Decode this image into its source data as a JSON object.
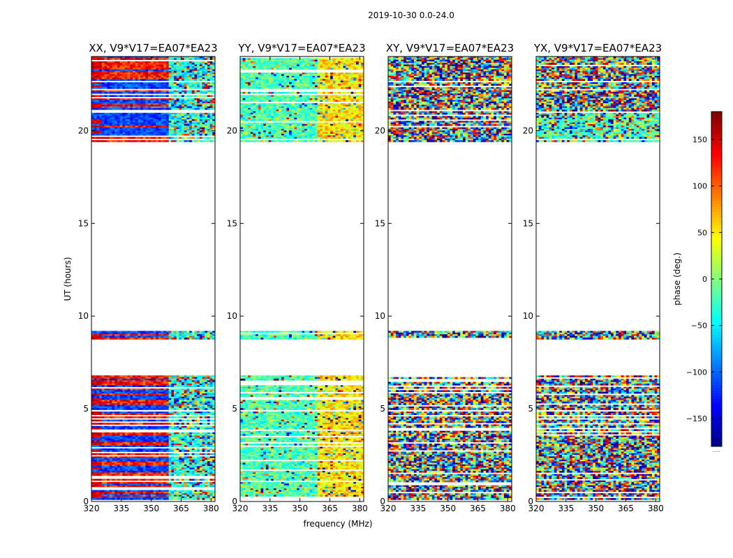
{
  "chart_data": {
    "type": "heatmap",
    "suptitle": "2019-10-30 0.0-24.0",
    "ylabel": "UT (hours)",
    "xlabel": "frequency (MHz)",
    "xlim": [
      320,
      382
    ],
    "ylim": [
      0,
      24
    ],
    "xticks": [
      320,
      335,
      350,
      365,
      380
    ],
    "yticks": [
      0,
      5,
      10,
      15,
      20
    ],
    "colormap": "jet",
    "colorbar": {
      "label": "phase (deg.)",
      "range": [
        -180,
        180
      ],
      "ticks": [
        -150,
        -100,
        -50,
        0,
        50,
        100,
        150
      ],
      "extra_label": "......"
    },
    "data_blocks_ut_hours": [
      [
        0.1,
        4.85
      ],
      [
        4.95,
        6.8
      ],
      [
        8.75,
        9.2
      ],
      [
        19.4,
        24.0
      ]
    ],
    "panels": [
      {
        "title": "XX, V9*V17=EA07*EA23",
        "phase_pattern": "red-blue bands, left half strong, right half noisy"
      },
      {
        "title": "YY, V9*V17=EA07*EA23",
        "phase_pattern": "cyan-green left, yellow-orange right"
      },
      {
        "title": "XY, V9*V17=EA07*EA23",
        "phase_pattern": "random phase noise"
      },
      {
        "title": "YX, V9*V17=EA07*EA23",
        "phase_pattern": "random phase noise, cyan-green near 20h"
      }
    ]
  }
}
